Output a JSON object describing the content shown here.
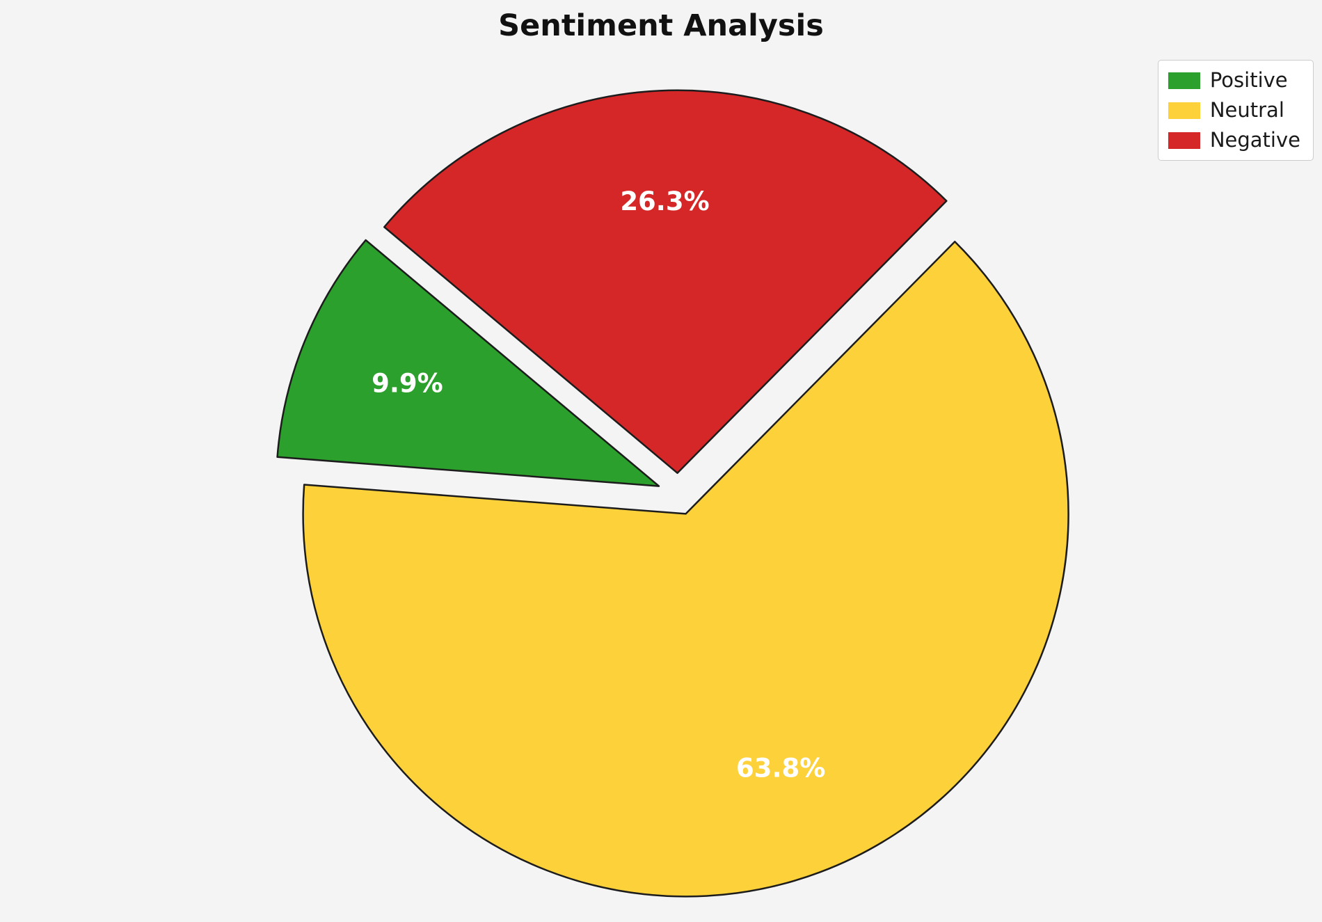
{
  "page": {
    "background_color": "#f4f4f4"
  },
  "chart_data": {
    "type": "pie",
    "title": "Sentiment Analysis",
    "labels": [
      "Positive",
      "Neutral",
      "Negative"
    ],
    "values": [
      9.9,
      63.8,
      26.3
    ],
    "percent_labels": [
      "9.9%",
      "63.8%",
      "26.3%"
    ],
    "colors": [
      "#2ca02c",
      "#fdd13a",
      "#d62728"
    ],
    "edge_color": "#1c1c1c",
    "percent_label_color": "#ffffff",
    "start_angle": 140,
    "direction": "counterclockwise",
    "explode": 0.055,
    "pct_distance": 0.71,
    "legend_position": "upper right",
    "legend_items": [
      {
        "label": "Positive",
        "color": "#2ca02c"
      },
      {
        "label": "Neutral",
        "color": "#fdd13a"
      },
      {
        "label": "Negative",
        "color": "#d62728"
      }
    ]
  }
}
